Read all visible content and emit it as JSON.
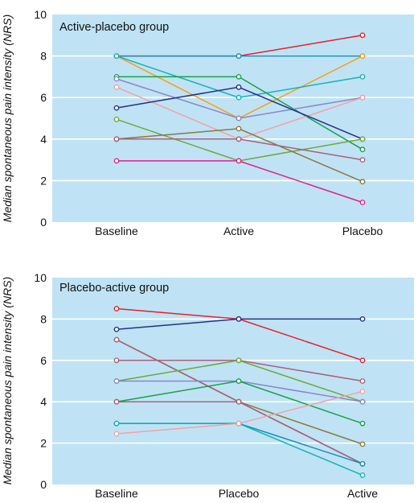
{
  "chart_data": [
    {
      "type": "line",
      "title": "Active-placebo group",
      "ylabel": "Median spontaneous pain intensity (NRS)",
      "xlabel": "",
      "categories": [
        "Baseline",
        "Active",
        "Placebo"
      ],
      "ylim": [
        0,
        10
      ],
      "yticks": [
        0,
        2,
        4,
        6,
        8,
        10
      ],
      "grid": true,
      "background_color": "#bfe3f5",
      "series": [
        {
          "color": "#e8202a",
          "values": [
            8,
            8,
            9
          ]
        },
        {
          "color": "#1a8fb8",
          "values": [
            8,
            8,
            8
          ]
        },
        {
          "color": "#f5a01a",
          "values": [
            8,
            5,
            8
          ]
        },
        {
          "color": "#13b3b8",
          "values": [
            8,
            6,
            7
          ]
        },
        {
          "color": "#1aa04a",
          "values": [
            7,
            7,
            3.5
          ]
        },
        {
          "color": "#8a86c8",
          "values": [
            6.9,
            5,
            6
          ]
        },
        {
          "color": "#f4a0a8",
          "values": [
            6.5,
            4,
            6
          ]
        },
        {
          "color": "#22308c",
          "values": [
            5.5,
            6.5,
            4
          ]
        },
        {
          "color": "#6fa83a",
          "values": [
            4.95,
            2.95,
            4
          ]
        },
        {
          "color": "#8a7a3a",
          "values": [
            4,
            4.5,
            1.95
          ]
        },
        {
          "color": "#a8607a",
          "values": [
            4,
            4,
            3
          ]
        },
        {
          "color": "#e0208a",
          "values": [
            2.95,
            2.95,
            0.95
          ]
        }
      ]
    },
    {
      "type": "line",
      "title": "Placebo-active group",
      "ylabel": "Median spontaneous pain intensity (NRS)",
      "xlabel": "",
      "categories": [
        "Baseline",
        "Placebo",
        "Active"
      ],
      "ylim": [
        0,
        10
      ],
      "yticks": [
        0,
        2,
        4,
        6,
        8,
        10
      ],
      "grid": true,
      "background_color": "#bfe3f5",
      "series": [
        {
          "color": "#e8202a",
          "values": [
            8.5,
            8,
            6
          ]
        },
        {
          "color": "#22308c",
          "values": [
            7.5,
            8,
            8
          ]
        },
        {
          "color": "#8a7a3a",
          "values": [
            7,
            4,
            1.95
          ]
        },
        {
          "color": "#a8607a",
          "values": [
            7,
            4,
            1
          ]
        },
        {
          "color": "#a8607a",
          "values": [
            6,
            6,
            5
          ]
        },
        {
          "color": "#6fa83a",
          "values": [
            5,
            6,
            4
          ]
        },
        {
          "color": "#8a86c8",
          "values": [
            5,
            5,
            4
          ]
        },
        {
          "color": "#1aa04a",
          "values": [
            4,
            5,
            2.95
          ]
        },
        {
          "color": "#a8607a",
          "values": [
            4,
            4,
            1
          ]
        },
        {
          "color": "#1a8fb8",
          "values": [
            2.95,
            2.95,
            1
          ]
        },
        {
          "color": "#13b3b8",
          "values": [
            2.95,
            2.95,
            0.45
          ]
        },
        {
          "color": "#f4a0a8",
          "values": [
            2.45,
            2.95,
            4.5
          ]
        }
      ]
    }
  ]
}
